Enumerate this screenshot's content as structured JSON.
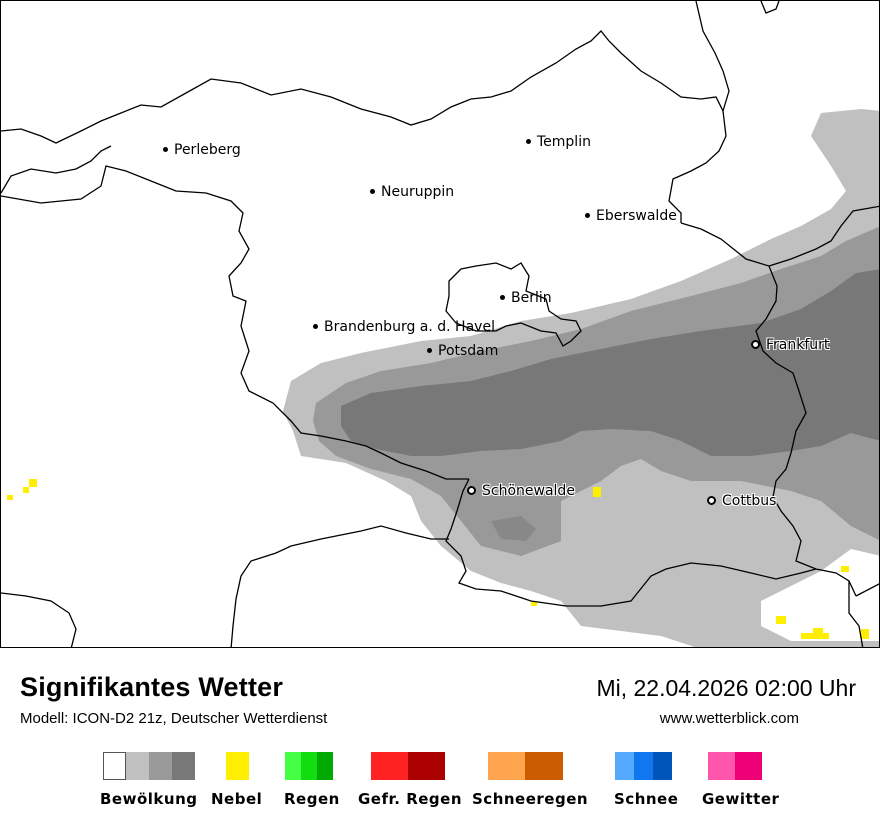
{
  "map": {
    "cities": [
      {
        "name": "Perleberg",
        "style": "dot"
      },
      {
        "name": "Templin",
        "style": "dot"
      },
      {
        "name": "Neuruppin",
        "style": "dot"
      },
      {
        "name": "Eberswalde",
        "style": "dot"
      },
      {
        "name": "Berlin",
        "style": "dot"
      },
      {
        "name": "Brandenburg a. d. Havel",
        "style": "dot"
      },
      {
        "name": "Potsdam",
        "style": "dot"
      },
      {
        "name": "Frankfurt",
        "style": "ring"
      },
      {
        "name": "Schönewalde",
        "style": "ring"
      },
      {
        "name": "Cottbus",
        "style": "ring"
      }
    ],
    "colors": {
      "cloud_light": "#c0c0c0",
      "cloud_medium": "#999999",
      "cloud_dark": "#787878",
      "fog": "#ffff33",
      "border": "#000000"
    }
  },
  "footer": {
    "title": "Signifikantes Wetter",
    "model": "Modell: ICON-D2 21z, Deutscher Wetterdienst",
    "datetime": "Mi, 22.04.2026 02:00 Uhr",
    "website": "www.wetterblick.com"
  },
  "legend": [
    {
      "label": "Bewölkung",
      "colors": [
        "#ffffff",
        "#c0c0c0",
        "#999999",
        "#787878"
      ]
    },
    {
      "label": "Nebel",
      "colors": [
        "#ffee00"
      ]
    },
    {
      "label": "Regen",
      "colors": [
        "#44ff44",
        "#11dd11",
        "#00aa00"
      ]
    },
    {
      "label": "Gefr. Regen",
      "colors": [
        "#ff2222",
        "#aa0000"
      ]
    },
    {
      "label": "Schneeregen",
      "colors": [
        "#ffa550",
        "#cc5c00"
      ]
    },
    {
      "label": "Schnee",
      "colors": [
        "#55aaff",
        "#1177ee",
        "#0055bb"
      ]
    },
    {
      "label": "Gewitter",
      "colors": [
        "#ff55aa",
        "#ee0077"
      ]
    }
  ]
}
